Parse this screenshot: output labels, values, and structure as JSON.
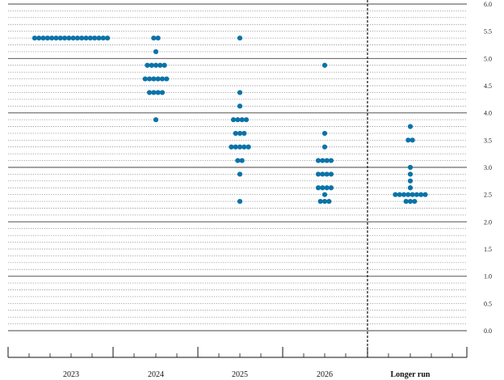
{
  "chart_data": {
    "type": "scatter",
    "title": "",
    "xlabel": "",
    "ylabel": "",
    "categories": [
      "2023",
      "2024",
      "2025",
      "2026",
      "Longer run"
    ],
    "ylim": [
      0.0,
      6.0
    ],
    "y_ticks": [
      "0.0",
      "0.5",
      "1.0",
      "1.5",
      "2.0",
      "2.5",
      "3.0",
      "3.5",
      "4.0",
      "4.5",
      "5.0",
      "5.5",
      "6.0"
    ],
    "grid": "solid at whole numbers, dotted at 0.125 steps",
    "separator": "dashed vertical line before Longer run",
    "dot_color": "#0a73a8",
    "series": [
      {
        "category": "2023",
        "points": [
          {
            "y": 5.375,
            "count": 18
          }
        ]
      },
      {
        "category": "2024",
        "points": [
          {
            "y": 5.375,
            "count": 2
          },
          {
            "y": 5.125,
            "count": 1
          },
          {
            "y": 4.875,
            "count": 5
          },
          {
            "y": 4.625,
            "count": 6
          },
          {
            "y": 4.375,
            "count": 4
          },
          {
            "y": 3.875,
            "count": 1
          }
        ]
      },
      {
        "category": "2025",
        "points": [
          {
            "y": 5.375,
            "count": 1
          },
          {
            "y": 4.375,
            "count": 1
          },
          {
            "y": 4.125,
            "count": 1
          },
          {
            "y": 3.875,
            "count": 4
          },
          {
            "y": 3.625,
            "count": 3
          },
          {
            "y": 3.375,
            "count": 5
          },
          {
            "y": 3.125,
            "count": 2
          },
          {
            "y": 2.875,
            "count": 1
          },
          {
            "y": 2.375,
            "count": 1
          }
        ]
      },
      {
        "category": "2026",
        "points": [
          {
            "y": 4.875,
            "count": 1
          },
          {
            "y": 3.625,
            "count": 1
          },
          {
            "y": 3.375,
            "count": 1
          },
          {
            "y": 3.125,
            "count": 4
          },
          {
            "y": 2.875,
            "count": 4
          },
          {
            "y": 2.625,
            "count": 4
          },
          {
            "y": 2.5,
            "count": 1
          },
          {
            "y": 2.375,
            "count": 3
          }
        ]
      },
      {
        "category": "Longer run",
        "points": [
          {
            "y": 3.75,
            "count": 1
          },
          {
            "y": 3.5,
            "count": 2
          },
          {
            "y": 3.0,
            "count": 1
          },
          {
            "y": 2.875,
            "count": 1
          },
          {
            "y": 2.75,
            "count": 1
          },
          {
            "y": 2.625,
            "count": 1
          },
          {
            "y": 2.5,
            "count": 8
          },
          {
            "y": 2.375,
            "count": 3
          }
        ]
      }
    ]
  }
}
